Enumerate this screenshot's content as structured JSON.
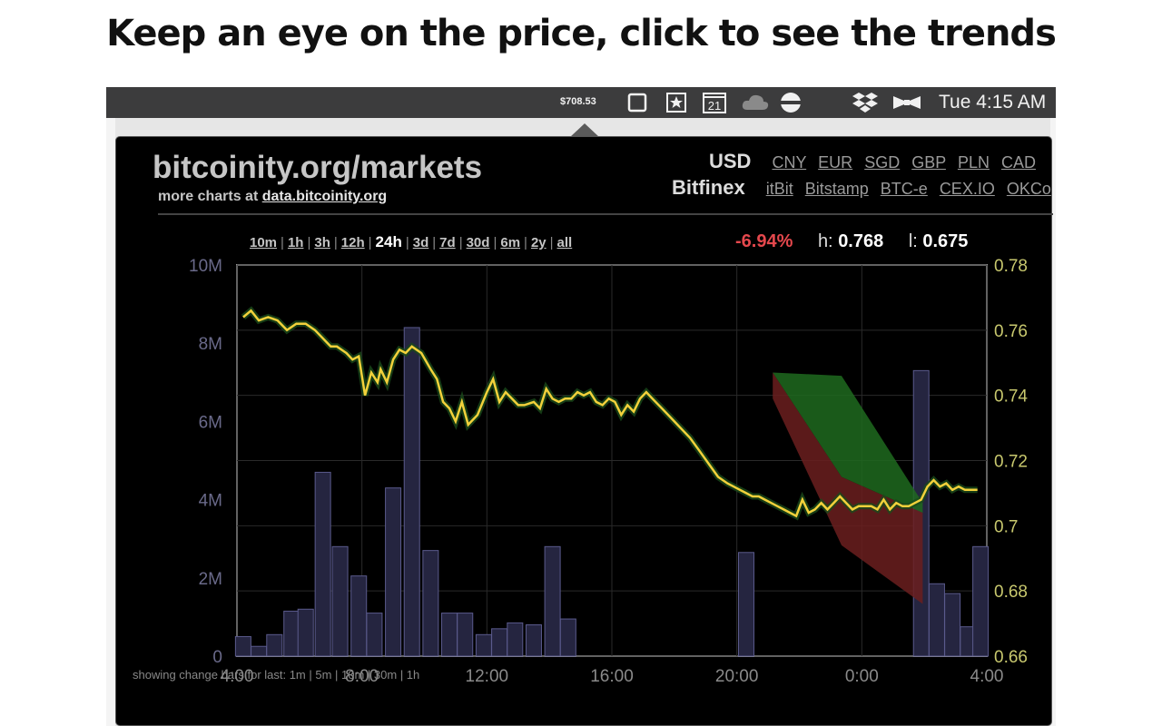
{
  "headline": "Keep an eye on the price, click to see the trends",
  "menubar": {
    "price": "$708.53",
    "clock": "Tue 4:15 AM",
    "calendar_day": "21",
    "icons": [
      "window-icon",
      "bookmark-star-icon",
      "calendar-icon",
      "cloud-icon",
      "globe-icon",
      "dropbox-icon",
      "bowtie-icon"
    ]
  },
  "popup": {
    "site_title": "bitcoinity.org/markets",
    "more_prefix": "more charts at",
    "more_link": "data.bitcoinity.org",
    "currency_active": "USD",
    "currencies": [
      "CNY",
      "EUR",
      "SGD",
      "GBP",
      "PLN",
      "CAD"
    ],
    "exchange_active": "Bitfinex",
    "exchanges": [
      "itBit",
      "Bitstamp",
      "BTC-e",
      "CEX.IO",
      "OKCo"
    ],
    "periods": [
      "10m",
      "1h",
      "3h",
      "12h",
      "24h",
      "3d",
      "7d",
      "30d",
      "6m",
      "2y",
      "all"
    ],
    "active_period": "24h",
    "change": "-6.94%",
    "high_label": "h:",
    "high_value": "0.768",
    "low_label": "l:",
    "low_value": "0.675",
    "bottom_text": "showing change bars for last: 1m | 5m | 10m | 30m | 1h"
  },
  "colors": {
    "line": "#f2d13b",
    "up_fill": "#1f6a1f",
    "down_fill": "#6b1f1f",
    "volume_bar": "#252540",
    "volume_stroke": "#5a5a8c",
    "right_axis": "#c8c86e",
    "left_axis": "#6a6a8a",
    "x_axis": "#8a8a8a"
  },
  "chart_data": {
    "type": "line",
    "x_ticks": [
      "4:00",
      "8:00",
      "12:00",
      "16:00",
      "20:00",
      "0:00",
      "4:00"
    ],
    "xlim": [
      0,
      24
    ],
    "y_left_ticks": [
      "0",
      "2M",
      "4M",
      "6M",
      "8M",
      "10M"
    ],
    "ylim_left": [
      0,
      10000000
    ],
    "y_right_ticks": [
      "0.66",
      "0.68",
      "0.7",
      "0.72",
      "0.74",
      "0.76",
      "0.78"
    ],
    "ylim_right": [
      0.66,
      0.78
    ],
    "grid": true,
    "series": [
      {
        "axis": "right",
        "x": [
          0.2,
          0.45,
          0.7,
          1.0,
          1.3,
          1.6,
          1.9,
          2.2,
          2.5,
          2.8,
          3.0,
          3.2,
          3.5,
          3.7,
          3.9,
          4.1,
          4.3,
          4.5,
          4.6,
          4.8,
          5.0,
          5.2,
          5.4,
          5.6,
          5.9,
          6.2,
          6.4,
          6.6,
          6.8,
          7.0,
          7.2,
          7.4,
          7.7,
          8.0,
          8.2,
          8.4,
          8.6,
          8.8,
          9.0,
          9.2,
          9.5,
          9.7,
          9.9,
          10.1,
          10.3,
          10.5,
          10.7,
          10.9,
          11.1,
          11.3,
          11.5,
          11.7,
          11.9,
          12.1,
          12.3,
          12.5,
          12.7,
          12.9,
          13.1,
          13.3,
          13.6,
          13.9,
          14.2,
          14.5,
          14.8,
          15.1,
          15.4,
          15.7,
          15.9,
          16.1,
          16.3,
          16.5,
          16.7,
          16.9,
          17.1,
          17.3,
          17.5,
          17.7,
          17.9,
          18.1,
          18.3,
          18.5,
          18.7,
          18.9,
          19.1,
          19.3,
          19.5,
          19.7,
          19.9,
          20.1,
          20.3,
          20.5,
          20.7,
          20.9,
          21.1,
          21.3,
          21.5,
          21.7,
          21.9,
          22.1,
          22.3,
          22.5,
          22.7,
          22.9,
          23.1,
          23.3,
          23.5,
          23.7
        ],
        "y": [
          0.764,
          0.766,
          0.763,
          0.764,
          0.763,
          0.76,
          0.762,
          0.762,
          0.76,
          0.757,
          0.755,
          0.755,
          0.753,
          0.751,
          0.752,
          0.74,
          0.747,
          0.744,
          0.748,
          0.744,
          0.751,
          0.754,
          0.753,
          0.755,
          0.753,
          0.748,
          0.745,
          0.738,
          0.736,
          0.732,
          0.738,
          0.731,
          0.734,
          0.741,
          0.745,
          0.738,
          0.741,
          0.739,
          0.737,
          0.737,
          0.738,
          0.736,
          0.742,
          0.739,
          0.738,
          0.739,
          0.739,
          0.741,
          0.74,
          0.741,
          0.738,
          0.737,
          0.739,
          0.738,
          0.734,
          0.737,
          0.735,
          0.739,
          0.741,
          0.739,
          0.736,
          0.733,
          0.73,
          0.727,
          0.723,
          0.719,
          0.715,
          0.713,
          0.712,
          0.711,
          0.71,
          0.709,
          0.709,
          0.708,
          0.707,
          0.706,
          0.705,
          0.704,
          0.703,
          0.708,
          0.704,
          0.705,
          0.707,
          0.705,
          0.707,
          0.709,
          0.707,
          0.705,
          0.706,
          0.706,
          0.706,
          0.705,
          0.708,
          0.705,
          0.707,
          0.706,
          0.706,
          0.707,
          0.708,
          0.712,
          0.714,
          0.712,
          0.713,
          0.711,
          0.712,
          0.711,
          0.711,
          0.711
        ]
      },
      {
        "axis": "right",
        "x": [
          17.15,
          19.35,
          21.95
        ],
        "y": [
          0.747,
          0.746,
          0.707
        ]
      },
      {
        "axis": "right",
        "x": [
          17.15,
          19.35,
          21.95
        ],
        "y": [
          0.739,
          0.694,
          0.676
        ]
      },
      {
        "type": "bar",
        "axis": "left",
        "x": [
          0.2,
          0.7,
          1.2,
          1.75,
          2.2,
          2.75,
          3.3,
          3.9,
          4.4,
          5.0,
          5.6,
          6.2,
          6.8,
          7.3,
          7.9,
          8.4,
          8.9,
          9.5,
          10.1,
          10.6,
          11.1,
          11.6,
          12.2,
          12.8,
          13.2,
          16.3,
          19.6,
          21.9,
          22.4,
          22.9,
          23.4,
          23.8
        ],
        "values": [
          500000,
          250000,
          550000,
          1150000,
          1200000,
          4700000,
          2800000,
          2050000,
          1100000,
          4300000,
          8400000,
          2700000,
          1100000,
          1100000,
          550000,
          700000,
          850000,
          800000,
          2800000,
          950000,
          0,
          0,
          0,
          0,
          0,
          2650000,
          0,
          7300000,
          1850000,
          1600000,
          750000,
          2800000
        ]
      }
    ]
  }
}
